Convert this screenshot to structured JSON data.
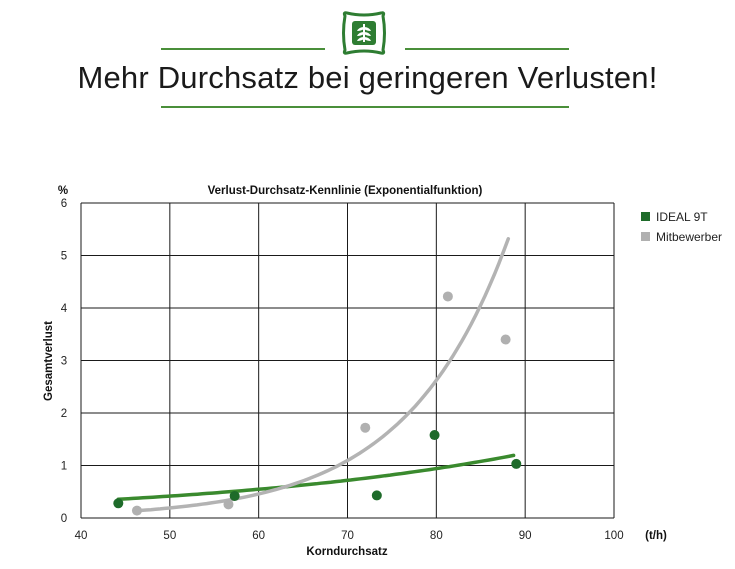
{
  "page": {
    "headline": "Mehr Durchsatz bei geringeren Verlusten!",
    "logo_icon": "wheat-sack-icon",
    "brand_color": "#2e7d32"
  },
  "chart_data": {
    "type": "scatter",
    "title": "Verlust-Durchsatz-Kennlinie (Exponentialfunktion)",
    "xlabel": "Korndurchsatz",
    "ylabel": "Gesamtverlust",
    "x_unit": "(t/h)",
    "y_unit": "%",
    "xlim": [
      40,
      100
    ],
    "ylim": [
      0,
      6
    ],
    "x_ticks": [
      40,
      50,
      60,
      70,
      80,
      90,
      100
    ],
    "y_ticks": [
      0,
      1,
      2,
      3,
      4,
      5,
      6
    ],
    "grid": true,
    "legend_position": "right",
    "series": [
      {
        "name": "IDEAL 9T",
        "color": "#1e6b2a",
        "trend_color": "#3a8a2e",
        "points": [
          {
            "x": 44.2,
            "y": 0.28
          },
          {
            "x": 57.3,
            "y": 0.42
          },
          {
            "x": 73.3,
            "y": 0.43
          },
          {
            "x": 79.8,
            "y": 1.58
          },
          {
            "x": 89.0,
            "y": 1.03
          }
        ],
        "trend": {
          "a": 0.1077,
          "b": 0.0271,
          "x_start": 44.2,
          "x_end": 88.7
        }
      },
      {
        "name": "Mitbewerber",
        "color": "#b0b0b0",
        "trend_color": "#b3b3b3",
        "points": [
          {
            "x": 46.3,
            "y": 0.14
          },
          {
            "x": 56.6,
            "y": 0.26
          },
          {
            "x": 72.0,
            "y": 1.72
          },
          {
            "x": 81.3,
            "y": 4.22
          },
          {
            "x": 87.8,
            "y": 3.4
          }
        ],
        "trend": {
          "a": 0.00243,
          "b": 0.0873,
          "x_start": 46.3,
          "x_end": 88.1
        }
      }
    ]
  }
}
